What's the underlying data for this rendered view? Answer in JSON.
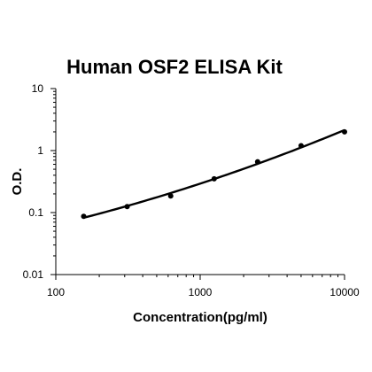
{
  "chart_data": {
    "type": "scatter",
    "title": "Human OSF2 ELISA Kit",
    "xlabel": "Concentration(pg/ml)",
    "ylabel": "O.D.",
    "x_scale": "log",
    "y_scale": "log",
    "xlim": [
      100,
      10000
    ],
    "ylim": [
      0.01,
      10
    ],
    "x_ticks": [
      100,
      1000,
      10000
    ],
    "x_tick_labels": [
      "100",
      "1000",
      "10000"
    ],
    "y_ticks": [
      0.01,
      0.1,
      1,
      10
    ],
    "y_tick_labels": [
      "0.01",
      "0.1",
      "1",
      "10"
    ],
    "grid": false,
    "series": [
      {
        "x": [
          156,
          312,
          625,
          1250,
          2500,
          5000,
          10000
        ],
        "y": [
          0.087,
          0.125,
          0.185,
          0.35,
          0.66,
          1.2,
          2.0
        ],
        "color": "#000000",
        "fit_line": true
      }
    ]
  }
}
